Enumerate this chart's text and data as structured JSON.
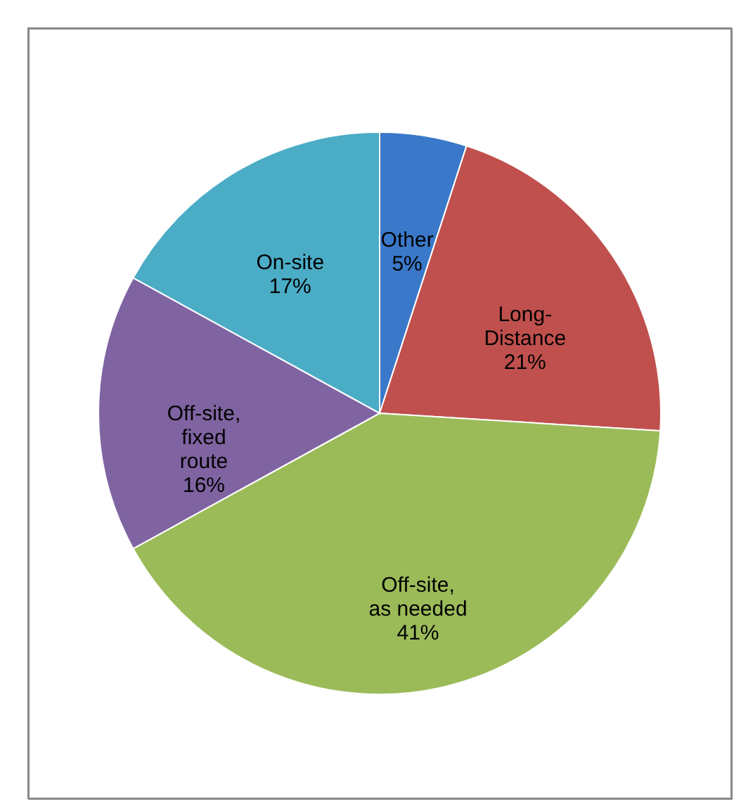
{
  "chart_data": {
    "type": "pie",
    "categories": [
      "Other",
      "Long-Distance",
      "Off-site, as needed",
      "Off-site, fixed route",
      "On-site"
    ],
    "values": [
      5,
      21,
      41,
      16,
      17
    ],
    "value_labels": [
      "5%",
      "21%",
      "41%",
      "16%",
      "17%"
    ],
    "colors": [
      "#3a78c9",
      "#c0504d",
      "#9bbb59",
      "#8064a2",
      "#4bacc6"
    ]
  }
}
